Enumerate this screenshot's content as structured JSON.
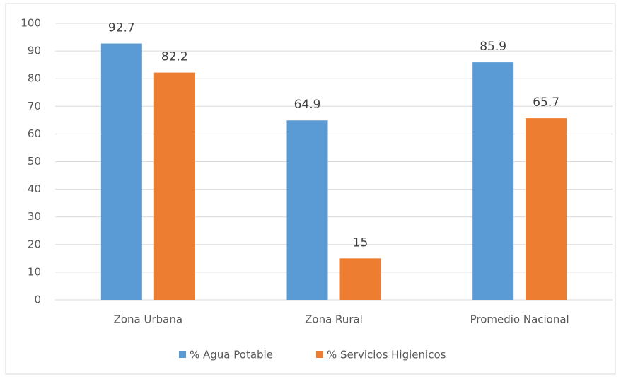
{
  "chart_data": {
    "type": "bar",
    "categories": [
      "Zona Urbana",
      "Zona Rural",
      "Promedio Nacional"
    ],
    "series": [
      {
        "name": "% Agua Potable",
        "color": "#5b9bd5",
        "values": [
          92.7,
          64.9,
          85.9
        ]
      },
      {
        "name": "% Servicios Higienicos",
        "color": "#ed7d31",
        "values": [
          82.2,
          15,
          65.7
        ]
      }
    ],
    "ylim": [
      0,
      100
    ],
    "yticks": [
      0,
      10,
      20,
      30,
      40,
      50,
      60,
      70,
      80,
      90,
      100
    ],
    "grid": true,
    "legend": "bottom"
  }
}
